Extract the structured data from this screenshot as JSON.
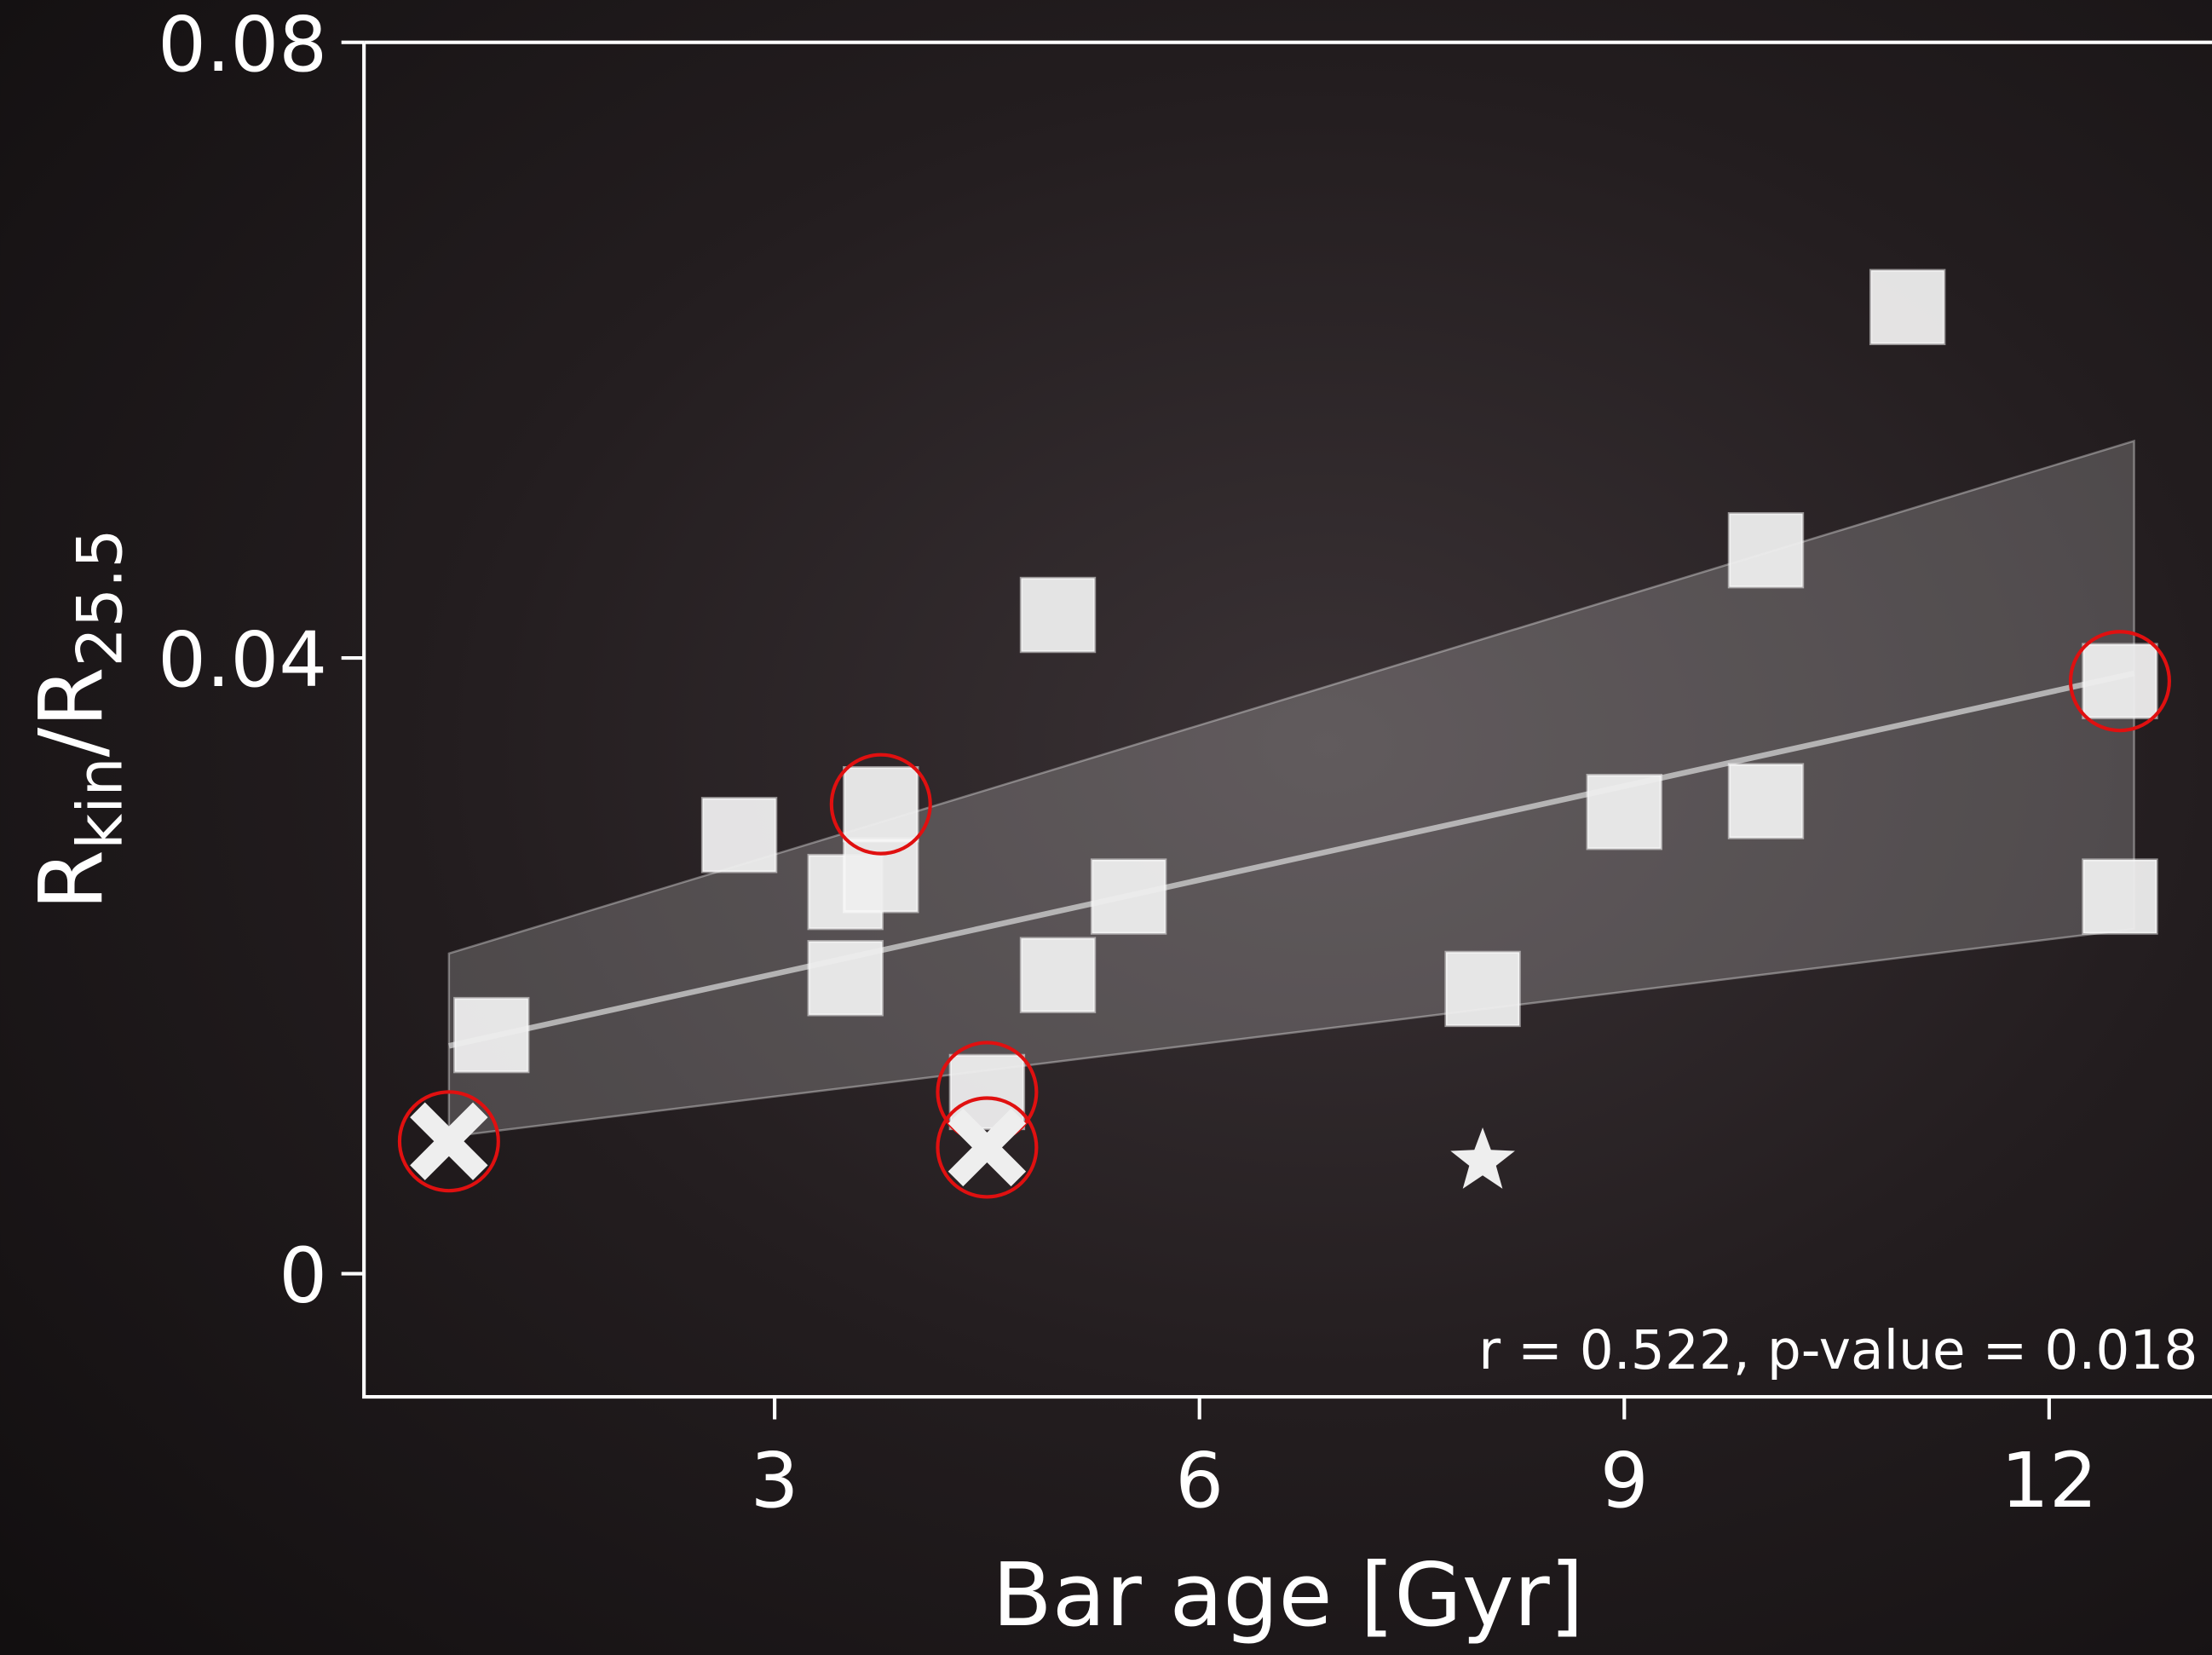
{
  "chart_data": {
    "type": "scatter",
    "xlabel": "Bar age [Gyr]",
    "ylabel_parts": [
      {
        "text": "R",
        "sub": false
      },
      {
        "text": "kin",
        "sub": true
      },
      {
        "text": "/R",
        "sub": false
      },
      {
        "text": "25.5",
        "sub": true
      }
    ],
    "annotation": "r = 0.522, p-value = 0.018",
    "xlim": [
      0.1,
      13.15
    ],
    "ylim": [
      -0.008,
      0.08
    ],
    "xticks": [
      3,
      6,
      9,
      12
    ],
    "yticks": [
      0,
      0.04,
      0.08
    ],
    "highlight_color": "#e01010",
    "series": [
      {
        "marker": "square",
        "color": "#eeeeee",
        "x": [
          1.0,
          2.75,
          3.5,
          3.75,
          3.75,
          3.5,
          4.5,
          5.0,
          5.0,
          5.5,
          8.0,
          9.0,
          10.0,
          10.0,
          11.0,
          12.5,
          12.5
        ],
        "values": [
          0.0155,
          0.0285,
          0.0248,
          0.0259,
          0.0305,
          0.0192,
          0.0118,
          0.0428,
          0.0194,
          0.0245,
          0.0185,
          0.03,
          0.0307,
          0.047,
          0.0628,
          0.0385,
          0.0245
        ],
        "circled": [
          false,
          false,
          false,
          false,
          true,
          false,
          true,
          false,
          false,
          false,
          false,
          false,
          false,
          false,
          false,
          true,
          false
        ]
      },
      {
        "marker": "cross",
        "color": "#eeeeee",
        "x": [
          0.7,
          4.5
        ],
        "values": [
          0.0086,
          0.0082
        ],
        "circled": [
          true,
          true
        ]
      },
      {
        "marker": "star",
        "color": "#eeeeee",
        "x": [
          8.0
        ],
        "values": [
          0.0073
        ],
        "circled": [
          false
        ]
      }
    ],
    "fit": {
      "color": "#cccccc",
      "x": [
        0.7,
        12.6
      ],
      "values": [
        0.0148,
        0.039
      ],
      "lower": [
        0.0089,
        0.0224
      ],
      "upper": [
        0.0208,
        0.0541
      ]
    }
  }
}
